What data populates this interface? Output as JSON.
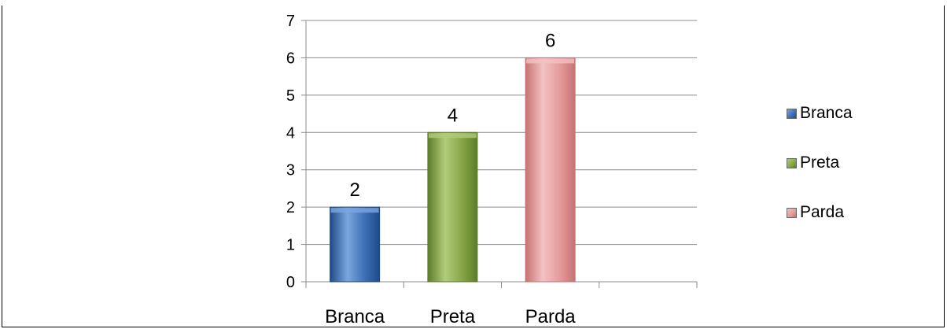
{
  "chart_data": {
    "type": "bar",
    "title": "",
    "categories": [
      "Branca",
      "Preta",
      "Parda"
    ],
    "values": [
      2,
      4,
      6
    ],
    "data_labels": [
      "2",
      "4",
      "6"
    ],
    "ylim": [
      0,
      7
    ],
    "yticks": [
      "0",
      "1",
      "2",
      "3",
      "4",
      "5",
      "6",
      "7"
    ],
    "xlabel": "",
    "ylabel": "",
    "grid": true,
    "legend_position": "right",
    "legend": [
      "Branca",
      "Preta",
      "Parda"
    ],
    "colors": [
      "#3d6fb5",
      "#86a445",
      "#e59a9a"
    ],
    "colors_dark": [
      "#1f4a88",
      "#5d7c2a",
      "#c77272"
    ],
    "colors_light": [
      "#7aa6de",
      "#b2cc7a",
      "#f3c2c2"
    ]
  }
}
